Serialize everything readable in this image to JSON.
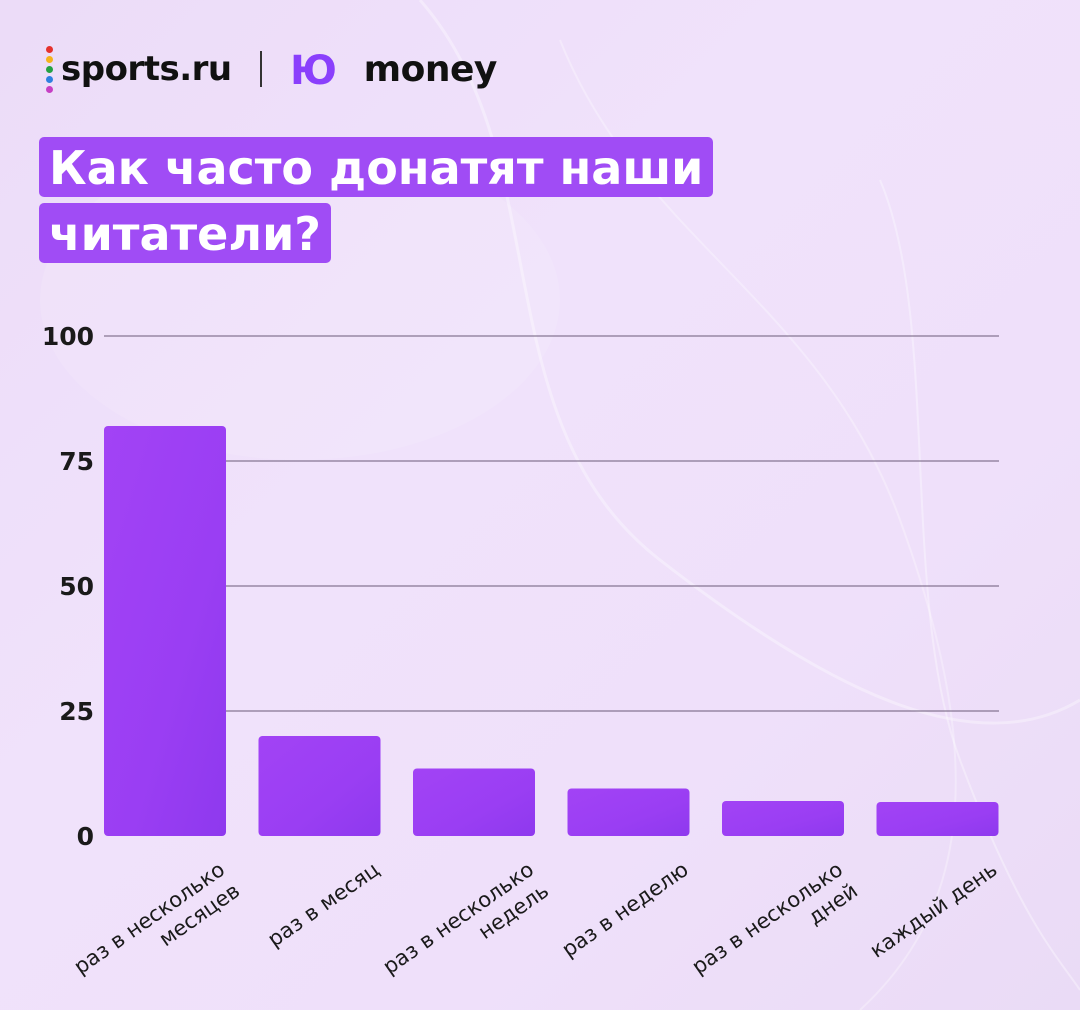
{
  "logos": {
    "sports": "sports.ru",
    "money_mark": "Ю",
    "money": "money"
  },
  "colors": {
    "accent": "#a04cf5",
    "bar": "#9d3ff2",
    "background": "#efe0fa"
  },
  "title_lines": [
    "Как часто донатят наши",
    "читатели?"
  ],
  "chart_data": {
    "type": "bar",
    "categories": [
      [
        "раз в несколько",
        "месяцев"
      ],
      [
        "раз в месяц"
      ],
      [
        "раз в несколько",
        "недель"
      ],
      [
        "раз в неделю"
      ],
      [
        "раз в несколько",
        "дней"
      ],
      [
        "каждый день"
      ]
    ],
    "values": [
      82,
      20,
      13.5,
      9.5,
      7,
      6.8
    ],
    "yticks": [
      "0",
      "25",
      "50",
      "75",
      "100"
    ],
    "ylim": [
      0,
      100
    ],
    "grid": true,
    "xlabel": "",
    "ylabel": ""
  }
}
